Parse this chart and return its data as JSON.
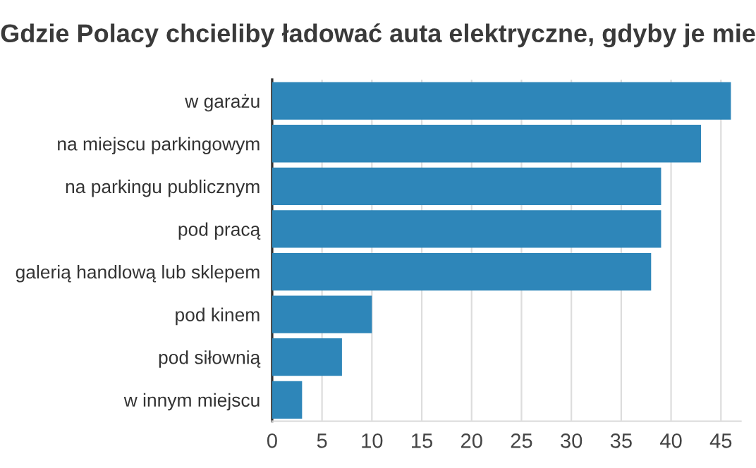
{
  "chart_data": {
    "type": "bar",
    "orientation": "horizontal",
    "title": "Gdzie Polacy chcieliby ładować auta elektryczne, gdyby je mie",
    "categories": [
      "w garażu",
      "na miejscu parkingowym",
      "na parkingu publicznym",
      "pod pracą",
      "galerią handlową lub sklepem",
      "pod kinem",
      "pod siłownią",
      "w innym miejscu"
    ],
    "values": [
      46,
      43,
      39,
      39,
      38,
      10,
      7,
      3
    ],
    "color": "#2e86b9",
    "xlim": [
      0,
      47
    ],
    "xticks": [
      0,
      5,
      10,
      15,
      20,
      25,
      30,
      35,
      40,
      45
    ],
    "grid": "x"
  }
}
